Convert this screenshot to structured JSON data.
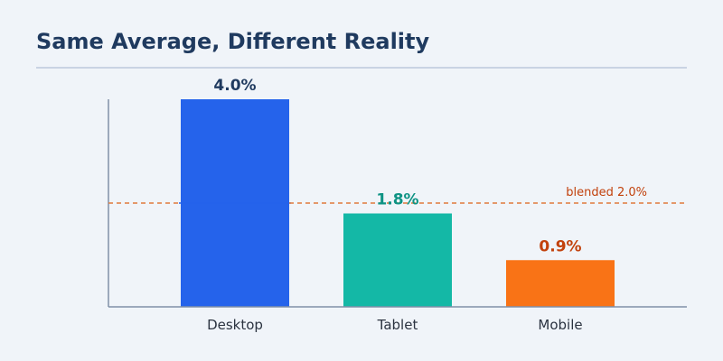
{
  "chart_data": {
    "type": "bar",
    "title": "Same Average, Different Reality",
    "xlabel": "",
    "ylabel": "",
    "categories": [
      "Desktop",
      "Tablet",
      "Mobile"
    ],
    "values": [
      4.0,
      1.8,
      0.9
    ],
    "value_labels": [
      "4.0%",
      "1.8%",
      "0.9%"
    ],
    "ylim": [
      0,
      4.0
    ],
    "grid": false,
    "reference_line": {
      "value": 2.0,
      "label": "blended 2.0%",
      "color": "#e07a3c"
    }
  },
  "colors": {
    "background": "#f0f4f9",
    "title": "#1f3a5f",
    "rule": "#c9d3e3",
    "axis": "#8090a8",
    "tick_text": "#2b3340",
    "bars": [
      "#2563eb",
      "#14b8a6",
      "#f97316"
    ],
    "value_labels": [
      "#1f3a5f",
      "#0e9384",
      "#c2410c"
    ],
    "reference_label": "#c2410c"
  }
}
